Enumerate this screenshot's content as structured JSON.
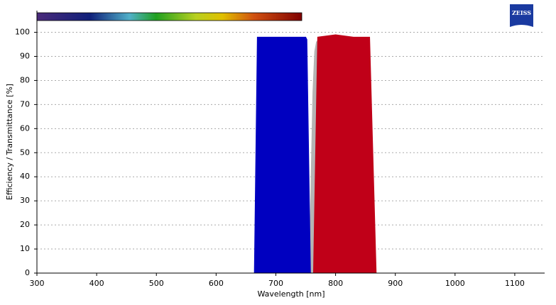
{
  "chart_data": {
    "type": "area",
    "logo": "ZEISS",
    "xlabel": "Wavelength [nm]",
    "ylabel": "Efficiency / Transmittance [%]",
    "xlim": [
      300,
      1150
    ],
    "xticks": [
      300,
      400,
      500,
      600,
      700,
      800,
      900,
      1000,
      1100
    ],
    "ylim": [
      0,
      109
    ],
    "yticks": [
      0,
      10,
      20,
      30,
      40,
      50,
      60,
      70,
      80,
      90,
      100
    ],
    "grid": true,
    "series": [
      {
        "color": "#b4b4b4",
        "x": [
          756,
          759,
          762,
          765,
          768,
          772
        ],
        "values": [
          0,
          40,
          75,
          92,
          96,
          97
        ]
      },
      {
        "color": "#0000c0",
        "x": [
          664,
          669,
          675,
          700,
          725,
          750,
          752,
          758
        ],
        "values": [
          0,
          98,
          98,
          98,
          98,
          98,
          97,
          0
        ]
      },
      {
        "color": "#c00018",
        "x": [
          763,
          770,
          800,
          830,
          857,
          868
        ],
        "values": [
          0,
          98,
          99,
          98,
          98,
          0
        ]
      }
    ]
  }
}
